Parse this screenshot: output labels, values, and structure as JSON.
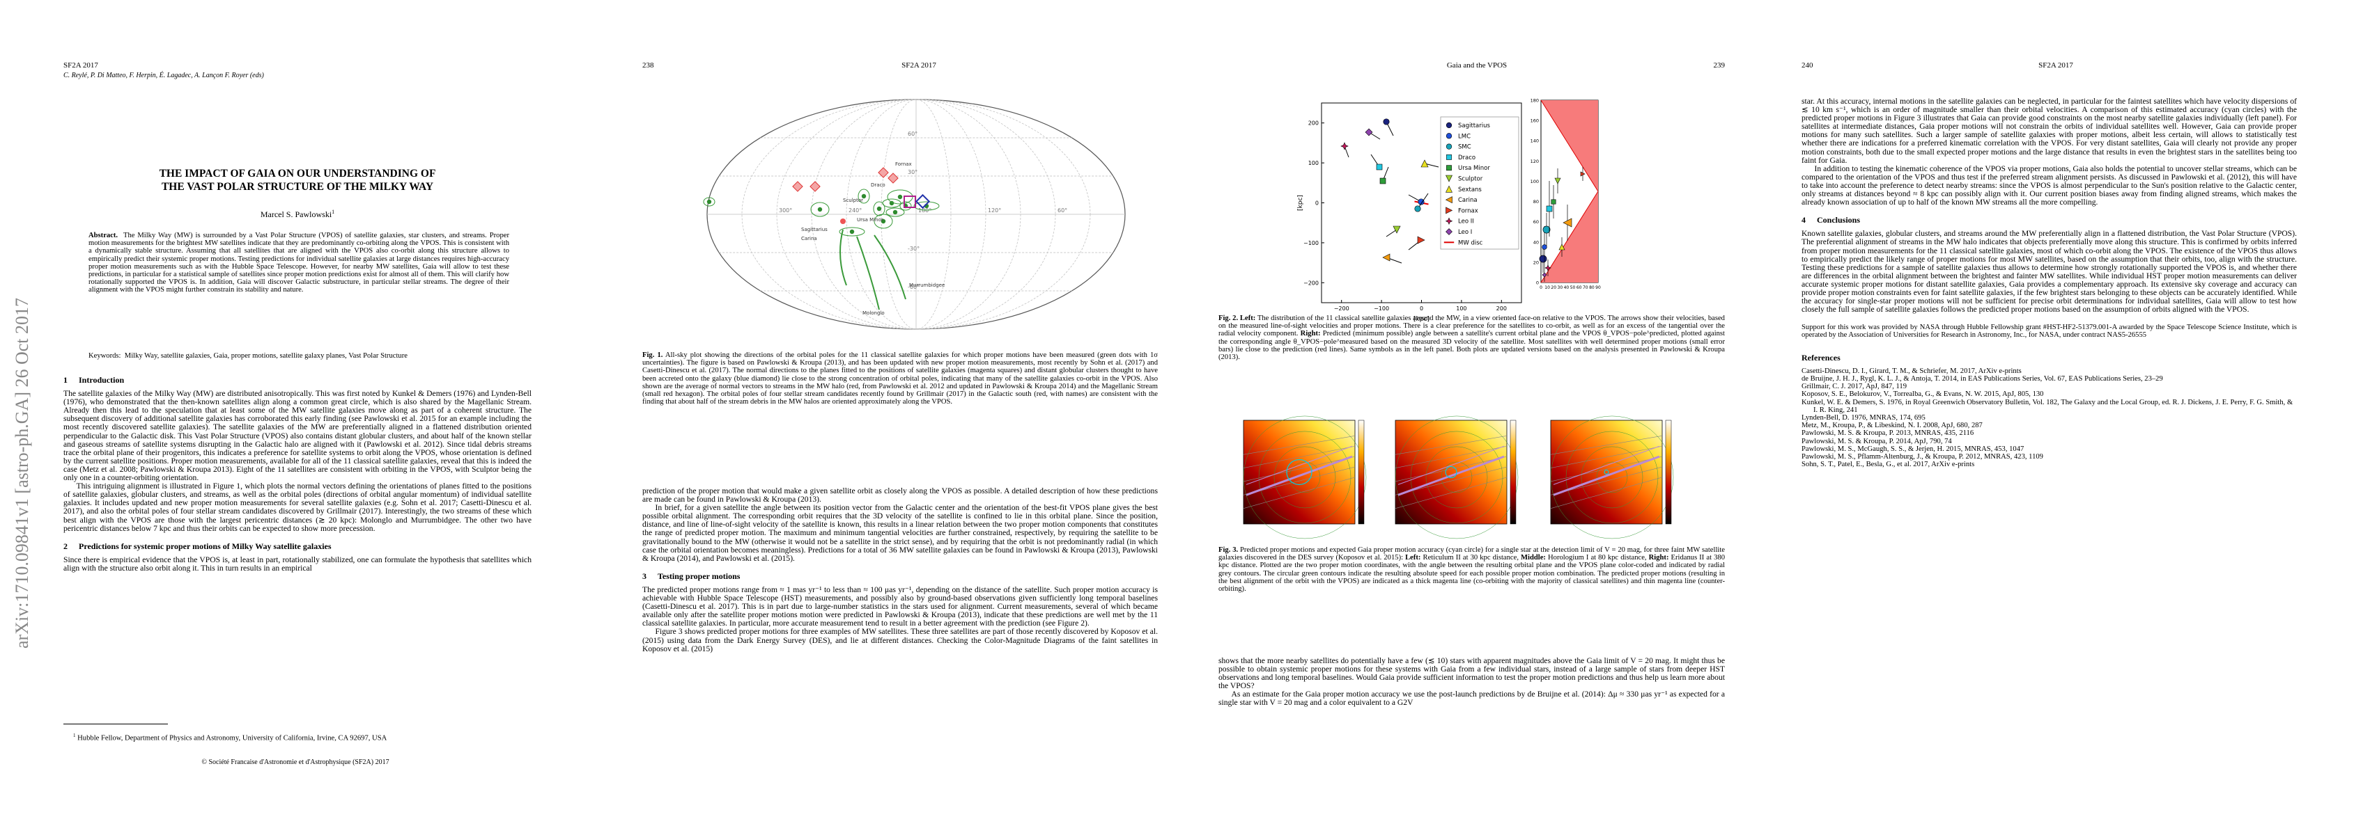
{
  "page1": {
    "header": "SF2A 2017",
    "editors": "C. Reylé, P. Di Matteo, F. Herpin, É. Lagadec, A. Lançon F. Royer (eds)",
    "arxiv": "arXiv:1710.09841v1  [astro-ph.GA]  26 Oct 2017",
    "title": [
      "THE IMPACT OF GAIA ON OUR UNDERSTANDING OF",
      "THE VAST POLAR STRUCTURE OF THE MILKY WAY"
    ],
    "author": "Marcel S. Pawlowski",
    "author_mark": "1",
    "abstract": {
      "label": "Abstract.",
      "text": "The Milky Way (MW) is surrounded by a Vast Polar Structure (VPOS) of satellite galaxies, star clusters, and streams. Proper motion measurements for the brightest MW satellites indicate that they are predominantly co-orbiting along the VPOS. This is consistent with a dynamically stable structure. Assuming that all satellites that are aligned with the VPOS also co-orbit along this structure allows to empirically predict their systemic proper motions. Testing predictions for individual satellite galaxies at large distances requires high-accuracy proper motion measurements such as with the Hubble Space Telescope. However, for nearby MW satellites, Gaia will allow to test these predictions, in particular for a statistical sample of satellites since proper motion predictions exist for almost all of them. This will clarify how rotationally supported the VPOS is. In addition, Gaia will discover Galactic substructure, in particular stellar streams. The degree of their alignment with the VPOS might further constrain its stability and nature."
    },
    "keywords": {
      "label": "Keywords:",
      "text": "Milky Way, satellite galaxies, Gaia, proper motions, satellite galaxy planes, Vast Polar Structure"
    },
    "sections": [
      {
        "number": "1",
        "title": "Introduction",
        "paragraphs": [
          "The satellite galaxies of the Milky Way (MW) are distributed anisotropically. This was first noted by Kunkel & Demers (1976) and Lynden-Bell (1976), who demonstrated that the then-known satellites align along a common great circle, which is also shared by the Magellanic Stream. Already then this lead to the speculation that at least some of the MW satellite galaxies move along as part of a coherent structure. The subsequent discovery of additional satellite galaxies has corroborated this early finding (see Pawlowski et al. 2015 for an example including the most recently discovered satellite galaxies). The satellite galaxies of the MW are preferentially aligned in a flattened distribution oriented perpendicular to the Galactic disk. This Vast Polar Structure (VPOS) also contains distant globular clusters, and about half of the known stellar and gaseous streams of satellite systems disrupting in the Galactic halo are aligned with it (Pawlowski et al. 2012). Since tidal debris streams trace the orbital plane of their progenitors, this indicates a preference for satellite systems to orbit along the VPOS, whose orientation is defined by the current satellite positions. Proper motion measurements, available for all of the 11 classical satellite galaxies, reveal that this is indeed the case (Metz et al. 2008; Pawlowski & Kroupa 2013). Eight of the 11 satellites are consistent with orbiting in the VPOS, with Sculptor being the only one in a counter-orbiting orientation.",
          "This intriguing alignment is illustrated in Figure 1, which plots the normal vectors defining the orientations of planes fitted to the positions of satellite galaxies, globular clusters, and streams, as well as the orbital poles (directions of orbital angular momentum) of individual satellite galaxies. It includes updated and new proper motion measurements for several satellite galaxies (e.g. Sohn et al. 2017; Casetti-Dinescu et al. 2017), and also the orbital poles of four stellar stream candidates discovered by Grillmair (2017). Interestingly, the two streams of these which best align with the VPOS are those with the largest pericentric distances (≳ 20 kpc): Molonglo and Murrumbidgee. The other two have pericentric distances below 7 kpc and thus their orbits can be expected to show more precession."
        ]
      },
      {
        "number": "2",
        "title": "Predictions for systemic proper motions of Milky Way satellite galaxies",
        "paragraphs": [
          "Since there is empirical evidence that the VPOS is, at least in part, rotationally stabilized, one can formulate the hypothesis that satellites which align with the structure also orbit along it. This in turn results in an empirical"
        ]
      }
    ],
    "footnote": {
      "mark": "1",
      "text": "Hubble Fellow, Department of Physics and Astronomy, University of California, Irvine, CA 92697, USA"
    },
    "copyright": "© Société Francaise d'Astronomie et d'Astrophysique (SF2A) 2017"
  },
  "page2": {
    "number": "238",
    "header": "SF2A 2017",
    "figure_labels": {
      "latitudes": [
        "60°",
        "30°",
        "-30°",
        "-60°"
      ],
      "longitudes": [
        "300°",
        "240°",
        "180°",
        "120°",
        "60°"
      ],
      "objects": [
        "Sagittarius",
        "Ursa Minor",
        "Draco",
        "Fornax",
        "Carina",
        "Sculptor",
        "Molonglo",
        "Murrumbidgee"
      ]
    },
    "caption": [
      {
        "text": "Fig. 1.",
        "bold": true
      },
      {
        "text": " All-sky plot showing the directions of the orbital poles for the 11 classical satellite galaxies for which proper motions have been measured (green dots with 1σ uncertainties). The figure is based on Pawlowski & Kroupa (2013), and has been updated with new proper motion measurements, most recently by Sohn et al. (2017) and Casetti-Dinescu et al. (2017). The normal directions to the planes fitted to the positions of satellite galaxies (magenta squares) and distant globular clusters thought to have been accreted onto the galaxy (blue diamond) lie close to the strong concentration of orbital poles, indicating that many of the satellite galaxies co-orbit in the VPOS. Also shown are the average of normal vectors to streams in the MW halo (red, from Pawlowski et al. 2012 and updated in Pawlowski & Kroupa 2014) and the Magellanic Stream (small red hexagon). The orbital poles of four stellar stream candidates recently found by Grillmair (2017) in the Galactic south (red, with names) are consistent with the finding that about half of the stream debris in the MW halos are oriented approximately along the VPOS.",
        "bold": false
      }
    ],
    "paragraphs": [
      "prediction of the proper motion that would make a given satellite orbit as closely along the VPOS as possible. A detailed description of how these predictions are made can be found in Pawlowski & Kroupa (2013).",
      "In brief, for a given satellite the angle between its position vector from the Galactic center and the orientation of the best-fit VPOS plane gives the best possible orbital alignment. The corresponding orbit requires that the 3D velocity of the satellite is confined to lie in this orbital plane. Since the position, distance, and line of line-of-sight velocity of the satellite is known, this results in a linear relation between the two proper motion components that constitutes the range of predicted proper motion. The maximum and minimum tangential velocities are further constrained, respectively, by requiring the satellite to be gravitationally bound to the MW (otherwise it would not be a satellite in the strict sense), and by requiring that the orbit is not predominantly radial (in which case the orbital orientation becomes meaningless). Predictions for a total of 36 MW satellite galaxies can be found in Pawlowski & Kroupa (2013), Pawlowski & Kroupa (2014), and Pawlowski et al. (2015)."
    ],
    "section": {
      "number": "3",
      "title": "Testing proper motions",
      "paragraphs": [
        "The predicted proper motions range from ≈ 1 mas yr⁻¹ to less than ≈ 100 μas yr⁻¹, depending on the distance of the satellite. Such proper motion accuracy is achievable with Hubble Space Telescope (HST) measurements, and possibly also by ground-based observations given sufficiently long temporal baselines (Casetti-Dinescu et al. 2017). This is in part due to large-number statistics in the stars used for alignment. Current measurements, several of which became available only after the satellite proper motions motion were predicted in Pawlowski & Kroupa (2013), indicate that these predictions are well met by the 11 classical satellite galaxies. In particular, more accurate measurement tend to result in a better agreement with the prediction (see Figure 2).",
        "Figure 3 shows predicted proper motions for three examples of MW satellites. These three satellites are part of those recently discovered by Koposov et al. (2015) using data from the Dark Energy Survey (DES), and lie at different distances. Checking the Color-Magnitude Diagrams of the faint satellites in Koposov et al. (2015)"
      ]
    }
  },
  "page3": {
    "header": "Gaia and the VPOS",
    "number": "239",
    "figure2": {
      "xlabel": "[kpc]",
      "ylabel": "[kpc]",
      "xticks": [
        "−200",
        "−100",
        "0",
        "100",
        "200"
      ],
      "yticks": [
        "200",
        "100",
        "0",
        "−100",
        "−200"
      ],
      "right_yticks": [
        "0",
        "20",
        "40",
        "60",
        "80",
        "100",
        "120",
        "140",
        "160",
        "180"
      ],
      "right_xticks": [
        "0",
        "10",
        "20",
        "30",
        "40",
        "50",
        "60",
        "70",
        "80",
        "90"
      ],
      "legend": [
        {
          "name": "Sagittarius",
          "color": "#1a237e",
          "marker": "circle"
        },
        {
          "name": "LMC",
          "color": "#1e4fd8",
          "marker": "circle"
        },
        {
          "name": "SMC",
          "color": "#17a2b8",
          "marker": "circle"
        },
        {
          "name": "Draco",
          "color": "#22c7e0",
          "marker": "square"
        },
        {
          "name": "Ursa Minor",
          "color": "#2e9e3a",
          "marker": "square"
        },
        {
          "name": "Sculptor",
          "color": "#9acd32",
          "marker": "down"
        },
        {
          "name": "Sextans",
          "color": "#e8e020",
          "marker": "up"
        },
        {
          "name": "Carina",
          "color": "#f39c12",
          "marker": "left"
        },
        {
          "name": "Fornax",
          "color": "#e23b1f",
          "marker": "right"
        },
        {
          "name": "Leo II",
          "color": "#c2185b",
          "marker": "star"
        },
        {
          "name": "Leo I",
          "color": "#8e44ad",
          "marker": "diamond"
        },
        {
          "name": "MW disc",
          "color": "#e00000",
          "marker": "line"
        }
      ]
    },
    "caption2": [
      {
        "text": "Fig. 2.",
        "bold": true
      },
      {
        "text": " ",
        "bold": false
      },
      {
        "text": "Left:",
        "bold": true
      },
      {
        "text": " The distribution of the 11 classical satellite galaxies around the MW, in a view oriented face-on relative to the VPOS. The arrows show their velocities, based on the measured line-of-sight velocities and proper motions. There is a clear preference for the satellites to co-orbit, as well as for an excess of the tangential over the radial velocity component. ",
        "bold": false
      },
      {
        "text": "Right:",
        "bold": true
      },
      {
        "text": " Predicted (minimum possible) angle between a satellite's current orbital plane and the VPOS θ_VPOS−pole^predicted, plotted against the corresponding angle θ_VPOS−pole^measured based on the measured 3D velocity of the satellite. Most satellites with well determined proper motions (small error bars) lie close to the prediction (red lines). Same symbols as in the left panel. Both plots are updated versions based on the analysis presented in Pawlowski & Kroupa (2013).",
        "bold": false
      }
    ],
    "caption3": [
      {
        "text": "Fig. 3.",
        "bold": true
      },
      {
        "text": " Predicted proper motions and expected Gaia proper motion accuracy (cyan circle) for a single star at the detection limit of V = 20 mag, for three faint MW satellite galaxies discovered in the DES survey (Koposov et al. 2015): ",
        "bold": false
      },
      {
        "text": "Left:",
        "bold": true
      },
      {
        "text": " Reticulum II at 30 kpc distance, ",
        "bold": false
      },
      {
        "text": "Middle:",
        "bold": true
      },
      {
        "text": " Horologium I at 80 kpc distance, ",
        "bold": false
      },
      {
        "text": "Right:",
        "bold": true
      },
      {
        "text": " Eridanus II at 380 kpc distance. Plotted are the two proper motion coordinates, with the angle between the resulting orbital plane and the VPOS plane color-coded and indicated by radial grey contours. The circular green contours indicate the resulting absolute speed for each possible proper motion combination. The predicted proper motions (resulting in the best alignment of the orbit with the VPOS) are indicated as a thick magenta line (co-orbiting with the majority of classical satellites) and thin magenta line (counter-orbiting).",
        "bold": false
      }
    ],
    "paragraphs": [
      "shows that the more nearby satellites do potentially have a few (≲ 10) stars with apparent magnitudes above the Gaia limit of V = 20 mag. It might thus be possible to obtain systemic proper motions for these systems with Gaia from a few individual stars, instead of a large sample of stars from deeper HST observations and long temporal baselines. Would Gaia provide sufficient information to test the proper motion predictions and thus help us learn more about the VPOS?",
      "As an estimate for the Gaia proper motion accuracy we use the post-launch predictions by de Bruijne et al. (2014): Δμ ≈ 330 μas yr⁻¹ as expected for a single star with V = 20 mag and a color equivalent to a G2V"
    ]
  },
  "page4": {
    "number": "240",
    "header": "SF2A 2017",
    "paragraphs": [
      "star. At this accuracy, internal motions in the satellite galaxies can be neglected, in particular for the faintest satellites which have velocity dispersions of ≲ 10 km s⁻¹, which is an order of magnitude smaller than their orbital velocities. A comparison of this estimated accuracy (cyan circles) with the predicted proper motions in Figure 3 illustrates that Gaia can provide good constraints on the most nearby satellite galaxies individually (left panel). For satellites at intermediate distances, Gaia proper motions will not constrain the orbits of individual satellites well. However, Gaia can provide proper motions for many such satellites. Such a larger sample of satellite galaxies with proper motions, albeit less certain, will allows to statistically test whether there are indications for a preferred kinematic correlation with the VPOS. For very distant satellites, Gaia will clearly not provide any proper motion constraints, both due to the small expected proper motions and the large distance that results in even the brightest stars in the satellites being too faint for Gaia.",
      "In addition to testing the kinematic coherence of the VPOS via proper motions, Gaia also holds the potential to uncover stellar streams, which can be compared to the orientation of the VPOS and thus test if the preferred stream alignment persists. As discussed in Pawlowski et al. (2012), this will have to take into account the preference to detect nearby streams: since the VPOS is almost perpendicular to the Sun's position relative to the Galactic center, only streams at distances beyond ≈ 8 kpc can possibly align with it. Our current position biases away from finding aligned streams, which makes the already known association of up to half of the known MW streams all the more compelling."
    ],
    "section": {
      "number": "4",
      "title": "Conclusions",
      "paragraphs": [
        "Known satellite galaxies, globular clusters, and streams around the MW preferentially align in a flattened distribution, the Vast Polar Structure (VPOS). The preferential alignment of streams in the MW halo indicates that objects preferentially move along this structure. This is confirmed by orbits inferred from proper motion measurements for the 11 classical satellite galaxies, most of which co-orbit along the VPOS. The existence of the VPOS thus allows to empirically predict the likely range of proper motions for most MW satellites, based on the assumption that their orbits, too, align with the structure. Testing these predictions for a sample of satellite galaxies thus allows to determine how strongly rotationally supported the VPOS is, and whether there are differences in the orbital alignment between the brightest and fainter MW satellites. While individual HST proper motion measurements can deliver accurate systemic proper motions for distant satellite galaxies, Gaia provides a complementary approach. Its extensive sky coverage and accuracy can provide proper motion constraints even for faint satellite galaxies, if the few brightest stars belonging to these objects can be accurately identified. While the accuracy for single-star proper motions will not be sufficient for precise orbit determinations for individual satellites, Gaia will allow to test how closely the full sample of satellite galaxies follows the predicted proper motions based on the assumption of orbits aligned with the VPOS."
      ]
    },
    "acknowledgement": "Support for this work was provided by NASA through Hubble Fellowship grant #HST-HF2-51379.001-A awarded by the Space Telescope Science Institute, which is operated by the Association of Universities for Research in Astronomy, Inc., for NASA, under contract NAS5-26555",
    "references_title": "References",
    "references": [
      "Casetti-Dinescu, D. I., Girard, T. M., & Schriefer, M. 2017, ArXiv e-prints",
      "de Bruijne, J. H. J., Rygl, K. L. J., & Antoja, T. 2014, in EAS Publications Series, Vol. 67, EAS Publications Series, 23–29",
      "Grillmair, C. J. 2017, ApJ, 847, 119",
      "Koposov, S. E., Belokurov, V., Torrealba, G., & Evans, N. W. 2015, ApJ, 805, 130",
      "Kunkel, W. E. & Demers, S. 1976, in Royal Greenwich Observatory Bulletin, Vol. 182, The Galaxy and the Local Group, ed. R. J. Dickens, J. E. Perry, F. G. Smith, & I. R. King, 241",
      "Lynden-Bell, D. 1976, MNRAS, 174, 695",
      "Metz, M., Kroupa, P., & Libeskind, N. I. 2008, ApJ, 680, 287",
      "Pawlowski, M. S. & Kroupa, P. 2013, MNRAS, 435, 2116",
      "Pawlowski, M. S. & Kroupa, P. 2014, ApJ, 790, 74",
      "Pawlowski, M. S., McGaugh, S. S., & Jerjen, H. 2015, MNRAS, 453, 1047",
      "Pawlowski, M. S., Pflamm-Altenburg, J., & Kroupa, P. 2012, MNRAS, 423, 1109",
      "Sohn, S. T., Patel, E., Besla, G., et al. 2017, ArXiv e-prints"
    ]
  }
}
